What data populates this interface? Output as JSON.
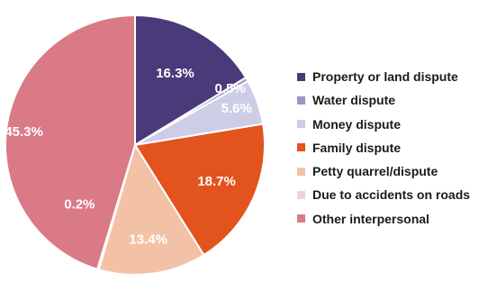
{
  "chart_data": {
    "type": "pie",
    "title": "",
    "slices": [
      {
        "label": "Property or land dispute",
        "value": 16.3,
        "display": "16.3%",
        "color": "#4b3a7a"
      },
      {
        "label": "Water dispute",
        "value": 0.5,
        "display": "0.5%",
        "color": "#9b95c9"
      },
      {
        "label": "Money dispute",
        "value": 5.6,
        "display": "5.6%",
        "color": "#cdcde8"
      },
      {
        "label": "Family dispute",
        "value": 18.7,
        "display": "18.7%",
        "color": "#e2531e"
      },
      {
        "label": "Petty quarrel/dispute",
        "value": 13.4,
        "display": "13.4%",
        "color": "#f3c2a6"
      },
      {
        "label": "Due to accidents on roads",
        "value": 0.2,
        "display": "0.2%",
        "color": "#f5d0d3"
      },
      {
        "label": "Other interpersonal",
        "value": 45.3,
        "display": "45.3%",
        "color": "#d97a86"
      }
    ],
    "start_angle_deg": 0,
    "direction": "clockwise",
    "legend_position": "right"
  }
}
